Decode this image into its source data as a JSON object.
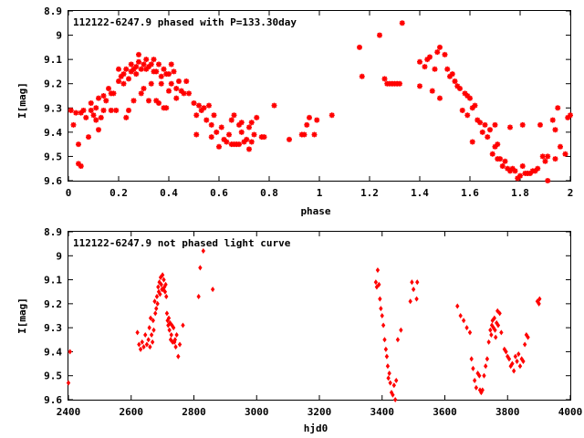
{
  "chart_data": [
    {
      "type": "scatter",
      "title": "112122-6247.9 phased with P=133.30day",
      "xlabel": "phase",
      "ylabel": "I[mag]",
      "xlim": [
        0,
        2
      ],
      "ylim": [
        9.6,
        8.9
      ],
      "y_inverted": true,
      "x_ticks": [
        "0",
        "0.2",
        "0.4",
        "0.6",
        "0.8",
        "1",
        "1.2",
        "1.4",
        "1.6",
        "1.8",
        "2"
      ],
      "y_ticks": [
        "8.9",
        "9",
        "9.1",
        "9.2",
        "9.3",
        "9.4",
        "9.5",
        "9.6"
      ],
      "grid": false,
      "marker_color": "#ff0000",
      "points": [
        [
          0.01,
          9.31
        ],
        [
          0.02,
          9.37
        ],
        [
          0.03,
          9.32
        ],
        [
          0.04,
          9.45
        ],
        [
          0.04,
          9.53
        ],
        [
          0.05,
          9.54
        ],
        [
          0.05,
          9.32
        ],
        [
          0.06,
          9.31
        ],
        [
          0.07,
          9.34
        ],
        [
          0.08,
          9.42
        ],
        [
          0.09,
          9.31
        ],
        [
          0.09,
          9.28
        ],
        [
          0.1,
          9.33
        ],
        [
          0.11,
          9.35
        ],
        [
          0.11,
          9.3
        ],
        [
          0.12,
          9.26
        ],
        [
          0.12,
          9.39
        ],
        [
          0.13,
          9.34
        ],
        [
          0.14,
          9.31
        ],
        [
          0.14,
          9.25
        ],
        [
          0.15,
          9.27
        ],
        [
          0.16,
          9.22
        ],
        [
          0.17,
          9.24
        ],
        [
          0.17,
          9.31
        ],
        [
          0.18,
          9.24
        ],
        [
          0.19,
          9.31
        ],
        [
          0.2,
          9.19
        ],
        [
          0.2,
          9.14
        ],
        [
          0.21,
          9.17
        ],
        [
          0.22,
          9.16
        ],
        [
          0.22,
          9.2
        ],
        [
          0.23,
          9.14
        ],
        [
          0.23,
          9.34
        ],
        [
          0.24,
          9.18
        ],
        [
          0.24,
          9.31
        ],
        [
          0.25,
          9.15
        ],
        [
          0.25,
          9.12
        ],
        [
          0.26,
          9.14
        ],
        [
          0.26,
          9.27
        ],
        [
          0.27,
          9.13
        ],
        [
          0.27,
          9.16
        ],
        [
          0.28,
          9.11
        ],
        [
          0.28,
          9.08
        ],
        [
          0.29,
          9.14
        ],
        [
          0.29,
          9.24
        ],
        [
          0.3,
          9.12
        ],
        [
          0.3,
          9.22
        ],
        [
          0.31,
          9.14
        ],
        [
          0.31,
          9.1
        ],
        [
          0.32,
          9.13
        ],
        [
          0.32,
          9.27
        ],
        [
          0.33,
          9.12
        ],
        [
          0.33,
          9.2
        ],
        [
          0.34,
          9.15
        ],
        [
          0.34,
          9.1
        ],
        [
          0.35,
          9.27
        ],
        [
          0.35,
          9.15
        ],
        [
          0.36,
          9.12
        ],
        [
          0.36,
          9.28
        ],
        [
          0.37,
          9.17
        ],
        [
          0.37,
          9.2
        ],
        [
          0.38,
          9.14
        ],
        [
          0.38,
          9.3
        ],
        [
          0.39,
          9.16
        ],
        [
          0.39,
          9.3
        ],
        [
          0.4,
          9.16
        ],
        [
          0.4,
          9.23
        ],
        [
          0.41,
          9.2
        ],
        [
          0.41,
          9.12
        ],
        [
          0.42,
          9.15
        ],
        [
          0.43,
          9.22
        ],
        [
          0.43,
          9.26
        ],
        [
          0.44,
          9.19
        ],
        [
          0.45,
          9.23
        ],
        [
          0.46,
          9.24
        ],
        [
          0.47,
          9.19
        ],
        [
          0.48,
          9.24
        ],
        [
          0.5,
          9.28
        ],
        [
          0.51,
          9.33
        ],
        [
          0.51,
          9.41
        ],
        [
          0.52,
          9.29
        ],
        [
          0.53,
          9.31
        ],
        [
          0.54,
          9.3
        ],
        [
          0.55,
          9.35
        ],
        [
          0.56,
          9.29
        ],
        [
          0.57,
          9.37
        ],
        [
          0.57,
          9.42
        ],
        [
          0.58,
          9.33
        ],
        [
          0.59,
          9.4
        ],
        [
          0.6,
          9.46
        ],
        [
          0.61,
          9.38
        ],
        [
          0.62,
          9.43
        ],
        [
          0.63,
          9.44
        ],
        [
          0.64,
          9.41
        ],
        [
          0.65,
          9.35
        ],
        [
          0.65,
          9.45
        ],
        [
          0.66,
          9.33
        ],
        [
          0.66,
          9.45
        ],
        [
          0.67,
          9.45
        ],
        [
          0.68,
          9.37
        ],
        [
          0.68,
          9.45
        ],
        [
          0.69,
          9.36
        ],
        [
          0.69,
          9.4
        ],
        [
          0.7,
          9.44
        ],
        [
          0.71,
          9.43
        ],
        [
          0.72,
          9.47
        ],
        [
          0.72,
          9.38
        ],
        [
          0.73,
          9.36
        ],
        [
          0.73,
          9.44
        ],
        [
          0.74,
          9.41
        ],
        [
          0.75,
          9.34
        ],
        [
          0.77,
          9.42
        ],
        [
          0.78,
          9.42
        ],
        [
          0.82,
          9.29
        ],
        [
          0.88,
          9.43
        ],
        [
          0.93,
          9.41
        ],
        [
          0.94,
          9.41
        ],
        [
          0.95,
          9.37
        ],
        [
          0.96,
          9.34
        ],
        [
          0.98,
          9.41
        ],
        [
          0.99,
          9.35
        ],
        [
          1.05,
          9.33
        ],
        [
          1.16,
          9.05
        ],
        [
          1.17,
          9.17
        ],
        [
          1.24,
          9.0
        ],
        [
          1.26,
          9.18
        ],
        [
          1.27,
          9.2
        ],
        [
          1.28,
          9.2
        ],
        [
          1.29,
          9.2
        ],
        [
          1.3,
          9.2
        ],
        [
          1.31,
          9.2
        ],
        [
          1.32,
          9.2
        ],
        [
          1.33,
          8.95
        ],
        [
          1.4,
          9.11
        ],
        [
          1.4,
          9.21
        ],
        [
          1.42,
          9.13
        ],
        [
          1.43,
          9.1
        ],
        [
          1.44,
          9.09
        ],
        [
          1.45,
          9.23
        ],
        [
          1.46,
          9.14
        ],
        [
          1.47,
          9.07
        ],
        [
          1.48,
          9.05
        ],
        [
          1.48,
          9.26
        ],
        [
          1.5,
          9.08
        ],
        [
          1.51,
          9.14
        ],
        [
          1.52,
          9.17
        ],
        [
          1.53,
          9.16
        ],
        [
          1.54,
          9.19
        ],
        [
          1.55,
          9.21
        ],
        [
          1.56,
          9.22
        ],
        [
          1.57,
          9.31
        ],
        [
          1.58,
          9.24
        ],
        [
          1.59,
          9.25
        ],
        [
          1.59,
          9.33
        ],
        [
          1.6,
          9.26
        ],
        [
          1.61,
          9.3
        ],
        [
          1.61,
          9.44
        ],
        [
          1.62,
          9.29
        ],
        [
          1.63,
          9.35
        ],
        [
          1.64,
          9.36
        ],
        [
          1.65,
          9.4
        ],
        [
          1.66,
          9.37
        ],
        [
          1.67,
          9.42
        ],
        [
          1.68,
          9.39
        ],
        [
          1.69,
          9.49
        ],
        [
          1.7,
          9.37
        ],
        [
          1.7,
          9.46
        ],
        [
          1.71,
          9.51
        ],
        [
          1.71,
          9.45
        ],
        [
          1.72,
          9.51
        ],
        [
          1.73,
          9.54
        ],
        [
          1.74,
          9.52
        ],
        [
          1.75,
          9.55
        ],
        [
          1.76,
          9.56
        ],
        [
          1.76,
          9.38
        ],
        [
          1.77,
          9.55
        ],
        [
          1.78,
          9.56
        ],
        [
          1.79,
          9.59
        ],
        [
          1.8,
          9.58
        ],
        [
          1.81,
          9.54
        ],
        [
          1.81,
          9.37
        ],
        [
          1.82,
          9.57
        ],
        [
          1.83,
          9.57
        ],
        [
          1.84,
          9.57
        ],
        [
          1.85,
          9.56
        ],
        [
          1.86,
          9.56
        ],
        [
          1.87,
          9.55
        ],
        [
          1.88,
          9.37
        ],
        [
          1.89,
          9.5
        ],
        [
          1.9,
          9.52
        ],
        [
          1.91,
          9.6
        ],
        [
          1.91,
          9.5
        ],
        [
          1.93,
          9.35
        ],
        [
          1.94,
          9.51
        ],
        [
          1.94,
          9.39
        ],
        [
          1.95,
          9.3
        ],
        [
          1.96,
          9.46
        ],
        [
          1.98,
          9.49
        ],
        [
          1.99,
          9.34
        ],
        [
          2.0,
          9.33
        ]
      ]
    },
    {
      "type": "scatter",
      "title": "112122-6247.9 not phased light curve",
      "xlabel": "hjd0",
      "ylabel": "I[mag]",
      "xlim": [
        2400,
        4000
      ],
      "ylim": [
        9.6,
        8.9
      ],
      "y_inverted": true,
      "x_ticks": [
        "2400",
        "2600",
        "2800",
        "3000",
        "3200",
        "3400",
        "3600",
        "3800",
        "4000"
      ],
      "y_ticks": [
        "8.9",
        "9",
        "9.1",
        "9.2",
        "9.3",
        "9.4",
        "9.5",
        "9.6"
      ],
      "grid": false,
      "marker_color": "#ff0000",
      "points": [
        [
          2400,
          9.53
        ],
        [
          2405,
          9.4
        ],
        [
          2620,
          9.32
        ],
        [
          2625,
          9.37
        ],
        [
          2630,
          9.39
        ],
        [
          2635,
          9.36
        ],
        [
          2640,
          9.38
        ],
        [
          2645,
          9.33
        ],
        [
          2650,
          9.37
        ],
        [
          2655,
          9.35
        ],
        [
          2658,
          9.3
        ],
        [
          2660,
          9.38
        ],
        [
          2662,
          9.26
        ],
        [
          2665,
          9.33
        ],
        [
          2668,
          9.36
        ],
        [
          2670,
          9.27
        ],
        [
          2672,
          9.31
        ],
        [
          2675,
          9.19
        ],
        [
          2677,
          9.24
        ],
        [
          2680,
          9.22
        ],
        [
          2682,
          9.17
        ],
        [
          2684,
          9.2
        ],
        [
          2686,
          9.13
        ],
        [
          2688,
          9.15
        ],
        [
          2690,
          9.11
        ],
        [
          2692,
          9.16
        ],
        [
          2694,
          9.09
        ],
        [
          2696,
          9.12
        ],
        [
          2698,
          9.14
        ],
        [
          2700,
          9.08
        ],
        [
          2702,
          9.14
        ],
        [
          2704,
          9.1
        ],
        [
          2706,
          9.13
        ],
        [
          2708,
          9.15
        ],
        [
          2710,
          9.12
        ],
        [
          2712,
          9.17
        ],
        [
          2714,
          9.24
        ],
        [
          2716,
          9.27
        ],
        [
          2718,
          9.29
        ],
        [
          2720,
          9.26
        ],
        [
          2722,
          9.31
        ],
        [
          2724,
          9.28
        ],
        [
          2726,
          9.35
        ],
        [
          2728,
          9.33
        ],
        [
          2730,
          9.29
        ],
        [
          2732,
          9.36
        ],
        [
          2735,
          9.3
        ],
        [
          2738,
          9.36
        ],
        [
          2740,
          9.35
        ],
        [
          2742,
          9.38
        ],
        [
          2745,
          9.33
        ],
        [
          2750,
          9.42
        ],
        [
          2755,
          9.37
        ],
        [
          2765,
          9.29
        ],
        [
          2815,
          9.17
        ],
        [
          2820,
          9.05
        ],
        [
          2830,
          8.98
        ],
        [
          2860,
          9.14
        ],
        [
          3380,
          9.11
        ],
        [
          3383,
          9.13
        ],
        [
          3386,
          9.06
        ],
        [
          3390,
          9.12
        ],
        [
          3393,
          9.18
        ],
        [
          3396,
          9.22
        ],
        [
          3400,
          9.25
        ],
        [
          3404,
          9.29
        ],
        [
          3408,
          9.35
        ],
        [
          3412,
          9.39
        ],
        [
          3415,
          9.42
        ],
        [
          3418,
          9.46
        ],
        [
          3420,
          9.51
        ],
        [
          3423,
          9.49
        ],
        [
          3426,
          9.53
        ],
        [
          3430,
          9.57
        ],
        [
          3434,
          9.58
        ],
        [
          3438,
          9.54
        ],
        [
          3442,
          9.6
        ],
        [
          3445,
          9.52
        ],
        [
          3450,
          9.35
        ],
        [
          3460,
          9.31
        ],
        [
          3490,
          9.19
        ],
        [
          3495,
          9.11
        ],
        [
          3500,
          9.14
        ],
        [
          3510,
          9.18
        ],
        [
          3512,
          9.11
        ],
        [
          3640,
          9.21
        ],
        [
          3650,
          9.25
        ],
        [
          3660,
          9.27
        ],
        [
          3670,
          9.3
        ],
        [
          3680,
          9.32
        ],
        [
          3685,
          9.43
        ],
        [
          3690,
          9.47
        ],
        [
          3695,
          9.52
        ],
        [
          3700,
          9.55
        ],
        [
          3705,
          9.49
        ],
        [
          3710,
          9.5
        ],
        [
          3712,
          9.56
        ],
        [
          3716,
          9.57
        ],
        [
          3720,
          9.56
        ],
        [
          3725,
          9.5
        ],
        [
          3730,
          9.46
        ],
        [
          3735,
          9.43
        ],
        [
          3740,
          9.36
        ],
        [
          3745,
          9.31
        ],
        [
          3748,
          9.33
        ],
        [
          3750,
          9.29
        ],
        [
          3752,
          9.27
        ],
        [
          3755,
          9.3
        ],
        [
          3758,
          9.26
        ],
        [
          3760,
          9.31
        ],
        [
          3762,
          9.34
        ],
        [
          3765,
          9.28
        ],
        [
          3768,
          9.23
        ],
        [
          3770,
          9.29
        ],
        [
          3775,
          9.24
        ],
        [
          3780,
          9.32
        ],
        [
          3790,
          9.39
        ],
        [
          3795,
          9.4
        ],
        [
          3800,
          9.42
        ],
        [
          3805,
          9.43
        ],
        [
          3810,
          9.46
        ],
        [
          3815,
          9.45
        ],
        [
          3820,
          9.48
        ],
        [
          3825,
          9.42
        ],
        [
          3830,
          9.44
        ],
        [
          3835,
          9.41
        ],
        [
          3840,
          9.46
        ],
        [
          3845,
          9.43
        ],
        [
          3850,
          9.44
        ],
        [
          3855,
          9.37
        ],
        [
          3860,
          9.33
        ],
        [
          3865,
          9.34
        ],
        [
          3895,
          9.19
        ],
        [
          3900,
          9.2
        ],
        [
          3902,
          9.18
        ]
      ]
    }
  ]
}
